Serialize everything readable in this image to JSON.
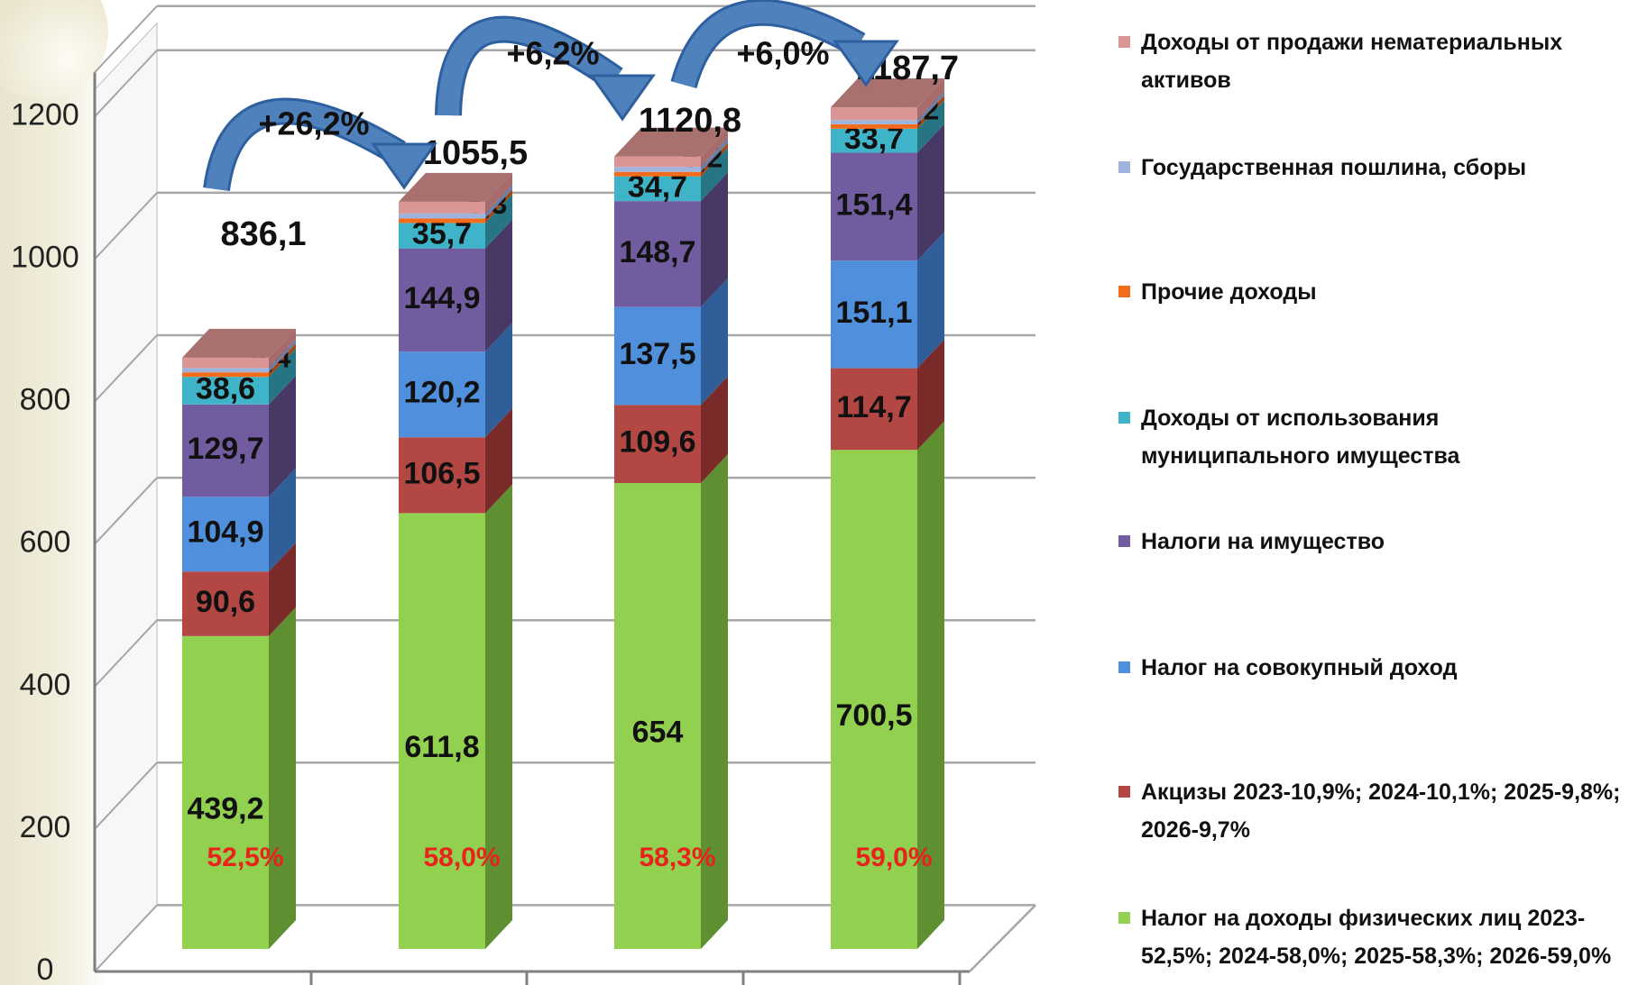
{
  "chart_data": {
    "type": "bar",
    "stacked": true,
    "three_d": true,
    "categories": [
      "",
      "",
      "",
      ""
    ],
    "ylim": [
      0,
      1200
    ],
    "y_ticks": [
      0,
      200,
      400,
      600,
      800,
      1000,
      1200
    ],
    "grid": true,
    "legend_position": "right",
    "totals": [
      "836,1",
      "1055,5",
      "1120,8",
      "1187,7"
    ],
    "growth_labels": [
      "+26,2%",
      "+6,2%",
      "+6,0%"
    ],
    "share_labels": [
      "52,5%",
      "58,0%",
      "58,3%",
      "59,0%"
    ],
    "series": [
      {
        "name": "Налог на доходы физических лиц 2023-52,5%; 2024-58,0%; 2025-58,3%; 2026-59,0%",
        "color": "#92d050",
        "side": "#5e8f30",
        "values": [
          439.2,
          611.8,
          654,
          700.5
        ],
        "labels": [
          "439,2",
          "611,8",
          "654",
          "700,5"
        ]
      },
      {
        "name": "Акцизы 2023-10,9%; 2024-10,1%; 2025-9,8%; 2026-9,7%",
        "color": "#b24743",
        "side": "#7a2a28",
        "values": [
          90.6,
          106.5,
          109.6,
          114.7
        ],
        "labels": [
          "90,6",
          "106,5",
          "109,6",
          "114,7"
        ]
      },
      {
        "name": "Налог на совокупный доход",
        "color": "#4f8fdc",
        "side": "#2f5e98",
        "values": [
          104.9,
          120.2,
          137.5,
          151.1
        ],
        "labels": [
          "104,9",
          "120,2",
          "137,5",
          "151,1"
        ]
      },
      {
        "name": "Налоги на имущество",
        "color": "#725ca0",
        "side": "#473866",
        "values": [
          129.7,
          144.9,
          148.7,
          151.4
        ],
        "labels": [
          "129,7",
          "144,9",
          "148,7",
          "151,4"
        ]
      },
      {
        "name": "Доходы от использования муниципального имущества",
        "color": "#3fb4c8",
        "side": "#257584",
        "values": [
          38.6,
          35.7,
          34.7,
          33.7
        ],
        "labels": [
          "38,6",
          "35,7",
          "34,7",
          "33,7"
        ]
      },
      {
        "name": "Прочие доходы",
        "color": "#f26c1c",
        "side": "#a64510",
        "values": [
          6.4,
          6.3,
          6.2,
          6.2
        ],
        "labels": [
          "6,4",
          "6,3",
          "6,2",
          "6,2"
        ]
      },
      {
        "name": "Государственная пошлина, сборы",
        "color": "#9fb4dc",
        "side": "#6a7ea6",
        "values": [
          6,
          7,
          7,
          6
        ],
        "labels": [
          "",
          "",
          "",
          ""
        ]
      },
      {
        "name": "Доходы от продажи нематериальных активов",
        "color": "#d99694",
        "side": "#a66b6a",
        "values": [
          14.6,
          16.4,
          14.7,
          17.9
        ],
        "labels": [
          "",
          "",
          "",
          ""
        ]
      }
    ]
  }
}
